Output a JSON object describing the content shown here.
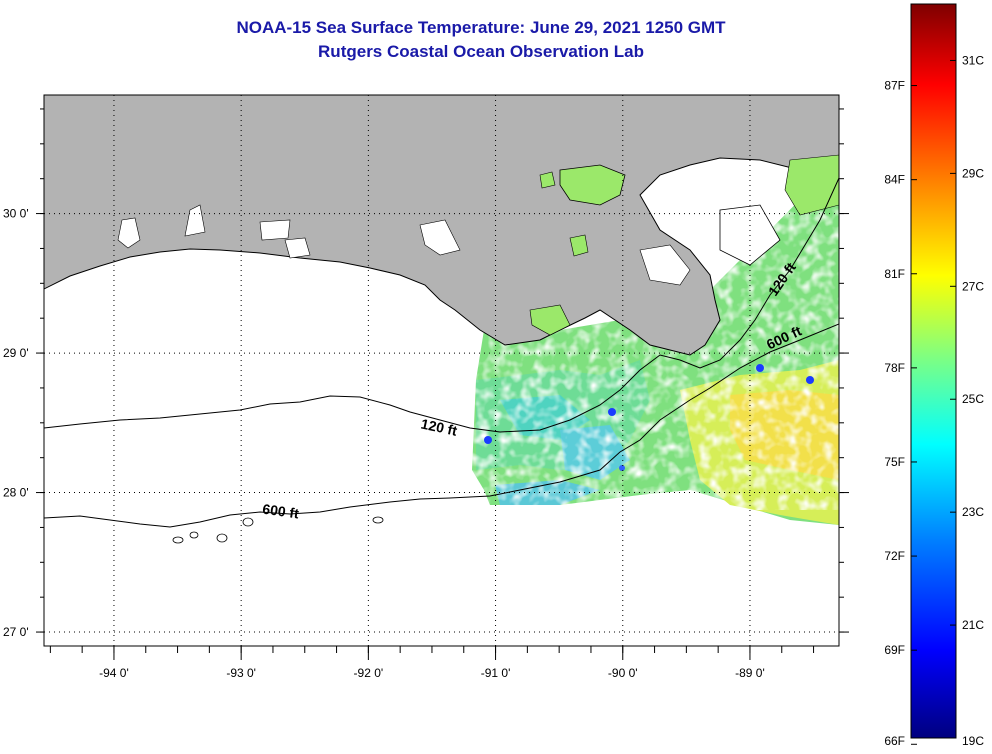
{
  "header": {
    "title": "NOAA-15 Sea Surface Temperature:  June 29, 2021 1250 GMT",
    "subtitle": "Rutgers Coastal Ocean Observation Lab"
  },
  "map": {
    "lon_range": [
      -94.55,
      -88.3
    ],
    "lat_range": [
      26.9,
      30.85
    ],
    "lon_ticks": [
      {
        "value": -94,
        "label": "-94 0'"
      },
      {
        "value": -93,
        "label": "-93 0'"
      },
      {
        "value": -92,
        "label": "-92 0'"
      },
      {
        "value": -91,
        "label": "-91 0'"
      },
      {
        "value": -90,
        "label": "-90 0'"
      },
      {
        "value": -89,
        "label": "-89 0'"
      }
    ],
    "lat_ticks": [
      {
        "value": 30,
        "label": "30 0'"
      },
      {
        "value": 29,
        "label": "29 0'"
      },
      {
        "value": 28,
        "label": "28 0'"
      },
      {
        "value": 27,
        "label": "27 0'"
      }
    ],
    "contour_labels": [
      {
        "id": "contour-120-west",
        "text": "120 ft"
      },
      {
        "id": "contour-600-west",
        "text": "600 ft"
      },
      {
        "id": "contour-120-east",
        "text": "120 ft"
      },
      {
        "id": "contour-600-east",
        "text": "600 ft"
      }
    ],
    "colors": {
      "land": "#b3b3b3",
      "ocean_no_data": "#ffffff",
      "grid": "#000000",
      "contour": "#000000"
    }
  },
  "colorbar": {
    "fahrenheit_labels": [
      "87F",
      "84F",
      "81F",
      "78F",
      "75F",
      "72F",
      "69F",
      "66F"
    ],
    "celsius_labels": [
      "31C",
      "29C",
      "27C",
      "25C",
      "23C",
      "21C",
      "19C"
    ],
    "range_c": [
      19,
      32
    ],
    "colors": [
      "#00007f",
      "#0000ff",
      "#0080ff",
      "#00ffff",
      "#80ff80",
      "#ffff00",
      "#ff8000",
      "#ff0000",
      "#7f0000"
    ]
  }
}
